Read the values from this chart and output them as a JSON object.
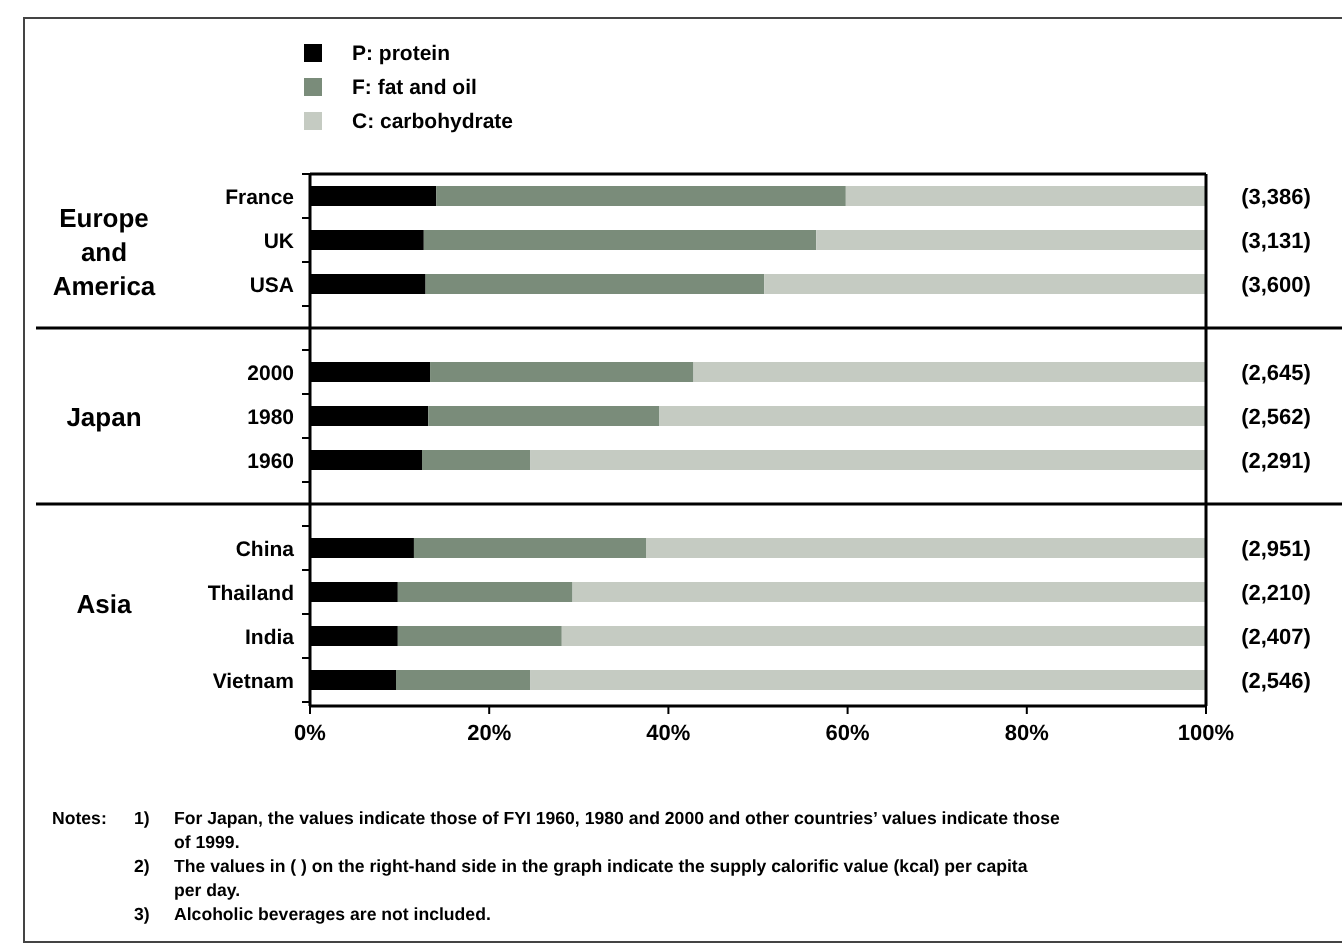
{
  "chart_data": {
    "type": "bar",
    "orientation": "horizontal",
    "stacked": true,
    "categories": [
      "France",
      "UK",
      "USA",
      null,
      "2000",
      "1980",
      "1960",
      null,
      "China",
      "Thailand",
      "India",
      "Vietnam"
    ],
    "series": [
      {
        "name": "P: protein",
        "color": "#000000",
        "values": [
          14.1,
          12.7,
          12.9,
          null,
          13.4,
          13.2,
          12.5,
          null,
          11.6,
          9.8,
          9.8,
          9.6
        ]
      },
      {
        "name": "F: fat and oil",
        "color": "#7a8c7a",
        "values": [
          45.7,
          43.8,
          37.8,
          null,
          29.4,
          25.8,
          12.1,
          null,
          25.9,
          19.5,
          18.3,
          15.0
        ]
      },
      {
        "name": "C: carbohydrate",
        "color": "#c5cbc2",
        "values": [
          40.2,
          43.5,
          49.3,
          null,
          57.2,
          61.0,
          75.4,
          null,
          62.5,
          70.7,
          71.9,
          75.4
        ]
      }
    ],
    "y2_categories": [
      "(3,386)",
      "(3,131)",
      "(3,600)",
      null,
      "(2,645)",
      "(2,562)",
      "(2,291)",
      null,
      "(2,951)",
      "(2,210)",
      "(2,407)",
      "(2,546)"
    ],
    "xlim": [
      0,
      100
    ],
    "xticks": [
      {
        "value": 0,
        "label": "0%"
      },
      {
        "value": 20,
        "label": "20%"
      },
      {
        "value": 40,
        "label": "40%"
      },
      {
        "value": 60,
        "label": "60%"
      },
      {
        "value": 80,
        "label": "80%"
      },
      {
        "value": 100,
        "label": "100%"
      }
    ],
    "legend": "top",
    "annotations": [
      "Europe and America",
      "Japan",
      "Asia",
      "Notes:",
      "1) For Japan, the values indicate those of FYI 1960, 1980 and 2000 and other countries’ values indicate those of 1999.",
      "2) The values in ( ) on the right-hand side in the graph indicate the supply calorific value (kcal) per capita per day.",
      "3) Alcoholic beverages are not included."
    ]
  }
}
